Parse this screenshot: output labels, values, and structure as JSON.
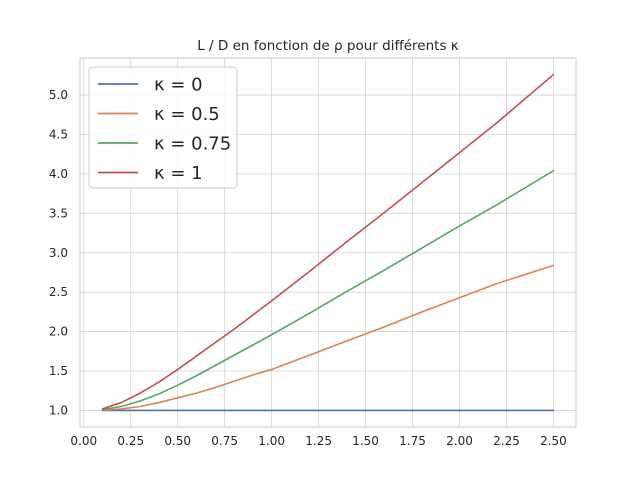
{
  "chart_data": {
    "type": "line",
    "title": "L / D en fonction de ρ pour différents κ",
    "xlabel": "",
    "ylabel": "",
    "xlim": [
      -0.02,
      2.62
    ],
    "ylim": [
      0.79,
      5.47
    ],
    "xticks": [
      0.0,
      0.25,
      0.5,
      0.75,
      1.0,
      1.25,
      1.5,
      1.75,
      2.0,
      2.25,
      2.5
    ],
    "xtick_labels": [
      "0.00",
      "0.25",
      "0.50",
      "0.75",
      "1.00",
      "1.25",
      "1.50",
      "1.75",
      "2.00",
      "2.25",
      "2.50"
    ],
    "yticks": [
      1.0,
      1.5,
      2.0,
      2.5,
      3.0,
      3.5,
      4.0,
      4.5,
      5.0
    ],
    "ytick_labels": [
      "1.0",
      "1.5",
      "2.0",
      "2.5",
      "3.0",
      "3.5",
      "4.0",
      "4.5",
      "5.0"
    ],
    "grid": true,
    "legend_position": "top-left",
    "x": [
      0.1,
      0.2,
      0.3,
      0.4,
      0.5,
      0.6,
      0.7,
      0.8,
      0.9,
      1.0,
      1.2,
      1.4,
      1.6,
      1.8,
      2.0,
      2.2,
      2.5
    ],
    "series": [
      {
        "name": "κ = 0",
        "color": "#4c72b0",
        "values": [
          1.0,
          1.0,
          1.0,
          1.0,
          1.0,
          1.0,
          1.0,
          1.0,
          1.0,
          1.0,
          1.0,
          1.0,
          1.0,
          1.0,
          1.0,
          1.0,
          1.0
        ]
      },
      {
        "name": "κ = 0.5",
        "color": "#dd8452",
        "values": [
          1.0,
          1.02,
          1.05,
          1.1,
          1.16,
          1.22,
          1.29,
          1.37,
          1.45,
          1.52,
          1.7,
          1.88,
          2.06,
          2.25,
          2.43,
          2.61,
          2.84
        ]
      },
      {
        "name": "κ = 0.75",
        "color": "#55a868",
        "values": [
          1.01,
          1.05,
          1.12,
          1.21,
          1.32,
          1.44,
          1.57,
          1.7,
          1.83,
          1.96,
          2.23,
          2.51,
          2.78,
          3.06,
          3.34,
          3.61,
          4.04
        ]
      },
      {
        "name": "κ = 1",
        "color": "#c44e52",
        "values": [
          1.02,
          1.1,
          1.22,
          1.36,
          1.52,
          1.69,
          1.86,
          2.03,
          2.21,
          2.39,
          2.76,
          3.14,
          3.51,
          3.89,
          4.27,
          4.65,
          5.26
        ]
      }
    ]
  }
}
